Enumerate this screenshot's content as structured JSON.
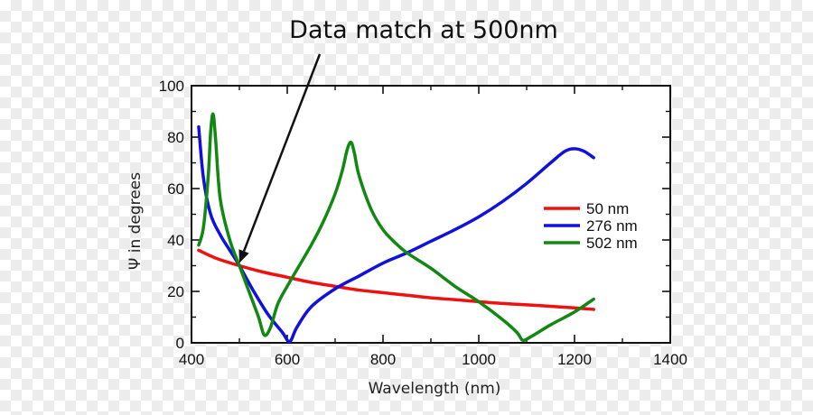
{
  "chart_data": {
    "type": "line",
    "title": "",
    "xlabel": "Wavelength (nm)",
    "ylabel": "Ψ in degrees",
    "xlim": [
      400,
      1400
    ],
    "ylim": [
      0,
      100
    ],
    "xticks": [
      400,
      600,
      800,
      1000,
      1200,
      1400
    ],
    "yticks": [
      0,
      20,
      40,
      60,
      80,
      100
    ],
    "xtick_labels": [
      "400",
      "600",
      "800",
      "1000",
      "1200",
      "1400"
    ],
    "ytick_labels": [
      "0",
      "20",
      "40",
      "60",
      "80",
      "100"
    ],
    "legend_position": "right",
    "annotation": {
      "text": "Data match at 500nm",
      "points_to": {
        "x": 500,
        "y": 30
      }
    },
    "series": [
      {
        "name": "50 nm",
        "color": "#ee1111",
        "x": [
          415,
          450,
          500,
          550,
          600,
          650,
          700,
          750,
          800,
          850,
          900,
          950,
          1000,
          1050,
          1100,
          1150,
          1200,
          1240
        ],
        "y": [
          36,
          33,
          30,
          27.5,
          25.5,
          23.5,
          22,
          20.5,
          19.5,
          18.5,
          17.5,
          16.8,
          16,
          15.3,
          14.8,
          14.2,
          13.6,
          13
        ]
      },
      {
        "name": "276 nm",
        "color": "#1111dd",
        "x": [
          415,
          425,
          440,
          460,
          480,
          500,
          530,
          560,
          590,
          605,
          620,
          650,
          700,
          750,
          800,
          850,
          900,
          950,
          1000,
          1050,
          1100,
          1150,
          1180,
          1200,
          1220,
          1240
        ],
        "y": [
          84,
          64,
          50,
          42,
          36,
          30,
          20,
          11,
          4,
          0.5,
          6,
          14,
          21,
          26,
          31,
          35,
          39.5,
          44,
          49,
          55,
          62,
          70,
          74.5,
          75.5,
          74.5,
          72
        ]
      },
      {
        "name": "502 nm",
        "color": "#118811",
        "x": [
          415,
          425,
          435,
          440,
          445,
          450,
          460,
          480,
          500,
          520,
          540,
          552,
          565,
          580,
          600,
          625,
          650,
          675,
          700,
          715,
          725,
          733,
          740,
          750,
          775,
          800,
          825,
          850,
          900,
          950,
          1000,
          1050,
          1080,
          1092,
          1110,
          1150,
          1200,
          1240
        ],
        "y": [
          38,
          45,
          65,
          82,
          89,
          80,
          56,
          40,
          30,
          20,
          10,
          3,
          6,
          15,
          22,
          30,
          38,
          47,
          58,
          67,
          75,
          78,
          74,
          65,
          52,
          44,
          39,
          35,
          29,
          22,
          16,
          9,
          4,
          1,
          2.5,
          7,
          12,
          17
        ]
      }
    ]
  }
}
